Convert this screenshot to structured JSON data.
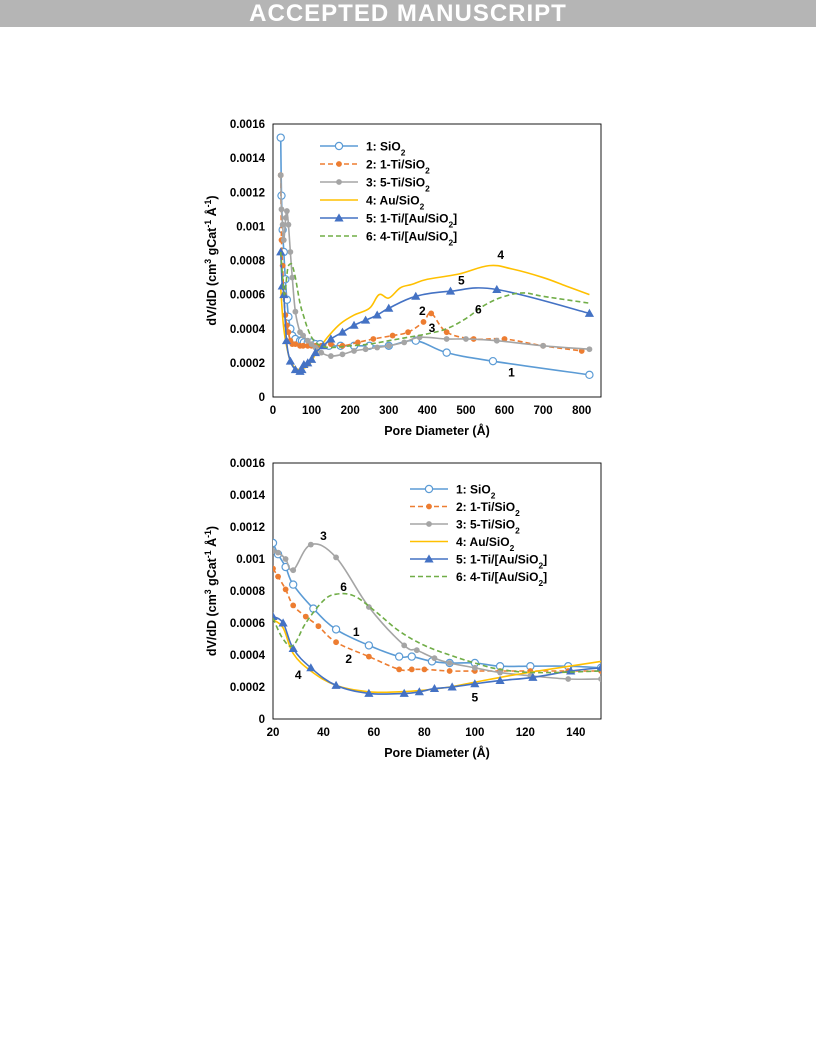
{
  "banner": {
    "text": "ACCEPTED MANUSCRIPT",
    "color": "#b5b5b5"
  },
  "colors": {
    "1": "#5b9bd5",
    "2": "#ed7d31",
    "3": "#a5a5a5",
    "4": "#ffc000",
    "5": "#4472c4",
    "6": "#70ad47"
  },
  "legend": [
    {
      "id": "1",
      "parts": [
        [
          "1: SiO",
          ""
        ],
        [
          "2",
          "sub"
        ]
      ]
    },
    {
      "id": "2",
      "parts": [
        [
          "2: 1-Ti/SiO",
          ""
        ],
        [
          "2",
          "sub"
        ]
      ]
    },
    {
      "id": "3",
      "parts": [
        [
          "3: 5-Ti/SiO",
          ""
        ],
        [
          "2",
          "sub"
        ]
      ]
    },
    {
      "id": "4",
      "parts": [
        [
          "4: Au/SiO",
          ""
        ],
        [
          "2",
          "sub"
        ]
      ]
    },
    {
      "id": "5",
      "parts": [
        [
          "5: 1-Ti/[Au/SiO",
          ""
        ],
        [
          "2",
          "sub"
        ],
        [
          "]",
          ""
        ]
      ]
    },
    {
      "id": "6",
      "parts": [
        [
          "6: 4-Ti/[Au/SiO",
          ""
        ],
        [
          "2",
          "sub"
        ],
        [
          "]",
          ""
        ]
      ]
    }
  ],
  "ylabel_parts": [
    [
      "dV/dD (cm",
      ""
    ],
    [
      "3",
      "sup"
    ],
    [
      " gCat",
      ""
    ],
    [
      "-1",
      "sup"
    ],
    [
      " Å",
      ""
    ],
    [
      "-1",
      "sup"
    ],
    [
      ")",
      ""
    ]
  ],
  "chart_data": [
    {
      "type": "line",
      "xlabel": "Pore Diameter (Å)",
      "ylabel": "dV/dD (cm3 gCat-1 Å-1)",
      "xlim": [
        0,
        850
      ],
      "ylim": [
        0,
        0.0016
      ],
      "xticks": [
        0,
        100,
        200,
        300,
        400,
        500,
        600,
        700,
        800
      ],
      "yticks": [
        0,
        0.0002,
        0.0004,
        0.0006,
        0.0008,
        0.001,
        0.0012,
        0.0014,
        0.0016
      ],
      "ytick_labels": [
        "0",
        "0.0002",
        "0.0004",
        "0.0006",
        "0.0008",
        "0.001",
        "0.0012",
        "0.0014",
        "0.0016"
      ],
      "grid": false,
      "legend_position": "top-left",
      "series": [
        {
          "name": "1: SiO2",
          "id": "1",
          "style": "solid",
          "marker": "open-circle",
          "x": [
            20,
            22,
            25,
            28,
            32,
            36,
            40,
            45,
            50,
            58,
            70,
            75,
            80,
            90,
            100,
            110,
            122,
            145,
            175,
            210,
            250,
            300,
            370,
            450,
            570,
            820
          ],
          "y": [
            0.00152,
            0.00118,
            0.00098,
            0.00085,
            0.00069,
            0.00057,
            0.00047,
            0.0004,
            0.00036,
            0.00034,
            0.00033,
            0.00033,
            0.00032,
            0.00032,
            0.00032,
            0.00031,
            0.00031,
            0.0003,
            0.0003,
            0.0003,
            0.0003,
            0.0003,
            0.00033,
            0.00026,
            0.00021,
            0.00013
          ]
        },
        {
          "name": "2: 1-Ti/SiO2",
          "id": "2",
          "style": "dashed",
          "marker": "filled-circle",
          "x": [
            20,
            22,
            25,
            28,
            32,
            36,
            40,
            45,
            50,
            58,
            70,
            78,
            90,
            100,
            110,
            125,
            150,
            180,
            220,
            260,
            310,
            350,
            390,
            410,
            450,
            520,
            600,
            700,
            800
          ],
          "y": [
            0.0013,
            0.00092,
            0.00077,
            0.0006,
            0.00048,
            0.00042,
            0.00038,
            0.00033,
            0.00031,
            0.00031,
            0.0003,
            0.0003,
            0.0003,
            0.0003,
            0.0003,
            0.0003,
            0.00031,
            0.0003,
            0.00032,
            0.00034,
            0.00036,
            0.00038,
            0.00044,
            0.00049,
            0.00038,
            0.00034,
            0.00034,
            0.0003,
            0.00027
          ]
        },
        {
          "name": "3: 5-Ti/SiO2",
          "id": "3",
          "style": "solid",
          "marker": "filled-circle",
          "x": [
            20,
            22,
            25,
            28,
            33,
            36,
            40,
            45,
            50,
            58,
            70,
            78,
            90,
            100,
            110,
            125,
            150,
            180,
            210,
            240,
            270,
            300,
            340,
            380,
            450,
            500,
            580,
            700,
            820
          ],
          "y": [
            0.0013,
            0.0011,
            0.00101,
            0.00092,
            0.00105,
            0.00109,
            0.00101,
            0.00085,
            0.0007,
            0.0005,
            0.00038,
            0.00036,
            0.00033,
            0.00031,
            0.00029,
            0.00026,
            0.00024,
            0.00025,
            0.00027,
            0.00028,
            0.00029,
            0.0003,
            0.00032,
            0.00035,
            0.00034,
            0.00034,
            0.00033,
            0.0003,
            0.00028
          ]
        },
        {
          "name": "4: Au/SiO2",
          "id": "4",
          "style": "solid",
          "marker": "none",
          "x": [
            20,
            24,
            28,
            35,
            45,
            58,
            70,
            80,
            90,
            100,
            110,
            125,
            145,
            175,
            210,
            250,
            275,
            300,
            330,
            360,
            400,
            480,
            560,
            620,
            700,
            760,
            820
          ],
          "y": [
            0.00064,
            0.0005,
            0.0004,
            0.0003,
            0.00021,
            0.00017,
            0.00016,
            0.00017,
            0.00018,
            0.00021,
            0.00025,
            0.0003,
            0.00036,
            0.00043,
            0.00048,
            0.00052,
            0.0006,
            0.00058,
            0.00064,
            0.00066,
            0.00069,
            0.00072,
            0.00077,
            0.00075,
            0.0007,
            0.00065,
            0.0006
          ]
        },
        {
          "name": "5: 1-Ti/[Au/SiO2]",
          "id": "5",
          "style": "solid",
          "marker": "filled-triangle",
          "x": [
            20,
            24,
            28,
            35,
            45,
            58,
            70,
            75,
            80,
            90,
            100,
            110,
            130,
            150,
            180,
            210,
            240,
            270,
            300,
            370,
            460,
            580,
            820
          ],
          "y": [
            0.00085,
            0.00065,
            0.0006,
            0.00033,
            0.00021,
            0.00016,
            0.00015,
            0.00016,
            0.00019,
            0.0002,
            0.00022,
            0.00026,
            0.0003,
            0.00034,
            0.00038,
            0.00042,
            0.00045,
            0.00048,
            0.00052,
            0.00059,
            0.00062,
            0.00063,
            0.00049
          ]
        },
        {
          "name": "6: 4-Ti/[Au/SiO2]",
          "id": "6",
          "style": "dashed",
          "marker": "none",
          "x": [
            20,
            25,
            30,
            38,
            45,
            50,
            58,
            70,
            80,
            90,
            100,
            110,
            125,
            150,
            200,
            250,
            300,
            350,
            400,
            450,
            500,
            550,
            600,
            650,
            700,
            820
          ],
          "y": [
            0.00085,
            0.0007,
            0.0006,
            0.00075,
            0.00078,
            0.00077,
            0.0007,
            0.00055,
            0.00047,
            0.0004,
            0.00035,
            0.00032,
            0.0003,
            0.00029,
            0.0003,
            0.00031,
            0.00033,
            0.00035,
            0.00037,
            0.0004,
            0.00046,
            0.00054,
            0.00059,
            0.00061,
            0.00059,
            0.00055
          ]
        }
      ],
      "annotations": [
        {
          "text": "4",
          "x": 590,
          "y": 0.00081
        },
        {
          "text": "5",
          "x": 488,
          "y": 0.00066
        },
        {
          "text": "2",
          "x": 387,
          "y": 0.00048
        },
        {
          "text": "6",
          "x": 532,
          "y": 0.00049
        },
        {
          "text": "3",
          "x": 412,
          "y": 0.00038
        },
        {
          "text": "1",
          "x": 618,
          "y": 0.00012
        }
      ]
    },
    {
      "type": "line",
      "xlabel": "Pore Diameter (Å)",
      "ylabel": "dV/dD (cm3 gCat-1 Å-1)",
      "xlim": [
        20,
        150
      ],
      "ylim": [
        0,
        0.0016
      ],
      "xticks": [
        20,
        40,
        60,
        80,
        100,
        120,
        140
      ],
      "yticks": [
        0,
        0.0002,
        0.0004,
        0.0006,
        0.0008,
        0.001,
        0.0012,
        0.0014,
        0.0016
      ],
      "ytick_labels": [
        "0",
        "0.0002",
        "0.0004",
        "0.0006",
        "0.0008",
        "0.001",
        "0.0012",
        "0.0014",
        "0.0016"
      ],
      "grid": false,
      "legend_position": "top-right",
      "series": [
        {
          "name": "1: SiO2",
          "id": "1",
          "style": "solid",
          "marker": "open-circle",
          "x": [
            20,
            22,
            25,
            28,
            36,
            45,
            58,
            70,
            75,
            83,
            90,
            100,
            110,
            122,
            137,
            150
          ],
          "y": [
            0.0011,
            0.00103,
            0.00095,
            0.00084,
            0.00069,
            0.00056,
            0.00046,
            0.00039,
            0.00039,
            0.00036,
            0.00035,
            0.00035,
            0.00033,
            0.00033,
            0.00033,
            0.00032
          ]
        },
        {
          "name": "2: 1-Ti/SiO2",
          "id": "2",
          "style": "dashed",
          "marker": "filled-circle",
          "x": [
            20,
            22,
            25,
            28,
            33,
            38,
            45,
            58,
            70,
            75,
            80,
            90,
            100,
            110,
            122,
            137,
            150
          ],
          "y": [
            0.00094,
            0.00089,
            0.00081,
            0.00071,
            0.00064,
            0.00058,
            0.00048,
            0.00039,
            0.00031,
            0.00031,
            0.00031,
            0.0003,
            0.0003,
            0.0003,
            0.0003,
            0.0003,
            0.0003
          ]
        },
        {
          "name": "3: 5-Ti/SiO2",
          "id": "3",
          "style": "solid",
          "marker": "filled-circle",
          "x": [
            20,
            22,
            25,
            28,
            35,
            45,
            58,
            72,
            77,
            84,
            90,
            100,
            110,
            122,
            137,
            150
          ],
          "y": [
            0.00105,
            0.00104,
            0.001,
            0.00093,
            0.00109,
            0.00101,
            0.0007,
            0.00046,
            0.00043,
            0.00038,
            0.00035,
            0.00032,
            0.00029,
            0.00027,
            0.00025,
            0.00025
          ]
        },
        {
          "name": "4: Au/SiO2",
          "id": "4",
          "style": "solid",
          "marker": "none",
          "x": [
            20,
            24,
            28,
            35,
            45,
            58,
            70,
            80,
            90,
            100,
            110,
            125,
            150
          ],
          "y": [
            0.00062,
            0.00057,
            0.00041,
            0.0003,
            0.00021,
            0.00017,
            0.00017,
            0.00018,
            0.0002,
            0.00023,
            0.00026,
            0.0003,
            0.00036
          ]
        },
        {
          "name": "5: 1-Ti/[Au/SiO2]",
          "id": "5",
          "style": "solid",
          "marker": "filled-triangle",
          "x": [
            20,
            24,
            28,
            35,
            45,
            58,
            72,
            78,
            84,
            91,
            100,
            110,
            123,
            138,
            150
          ],
          "y": [
            0.00064,
            0.0006,
            0.00044,
            0.00032,
            0.00021,
            0.00016,
            0.00016,
            0.00017,
            0.00019,
            0.0002,
            0.00022,
            0.00024,
            0.00026,
            0.0003,
            0.00032
          ]
        },
        {
          "name": "6: 4-Ti/[Au/SiO2]",
          "id": "6",
          "style": "dashed",
          "marker": "none",
          "x": [
            20,
            24,
            28,
            33,
            40,
            45,
            52,
            60,
            70,
            80,
            90,
            100,
            110,
            125,
            150
          ],
          "y": [
            0.00063,
            0.0005,
            0.00046,
            0.0006,
            0.00074,
            0.00078,
            0.00077,
            0.00068,
            0.00055,
            0.00046,
            0.0004,
            0.00035,
            0.00031,
            0.00029,
            0.0003
          ]
        }
      ],
      "annotations": [
        {
          "text": "3",
          "x": 40,
          "y": 0.00112
        },
        {
          "text": "6",
          "x": 48,
          "y": 0.0008
        },
        {
          "text": "1",
          "x": 53,
          "y": 0.00052
        },
        {
          "text": "2",
          "x": 50,
          "y": 0.00035
        },
        {
          "text": "4",
          "x": 30,
          "y": 0.00025
        },
        {
          "text": "5",
          "x": 100,
          "y": 0.00011
        }
      ]
    }
  ]
}
